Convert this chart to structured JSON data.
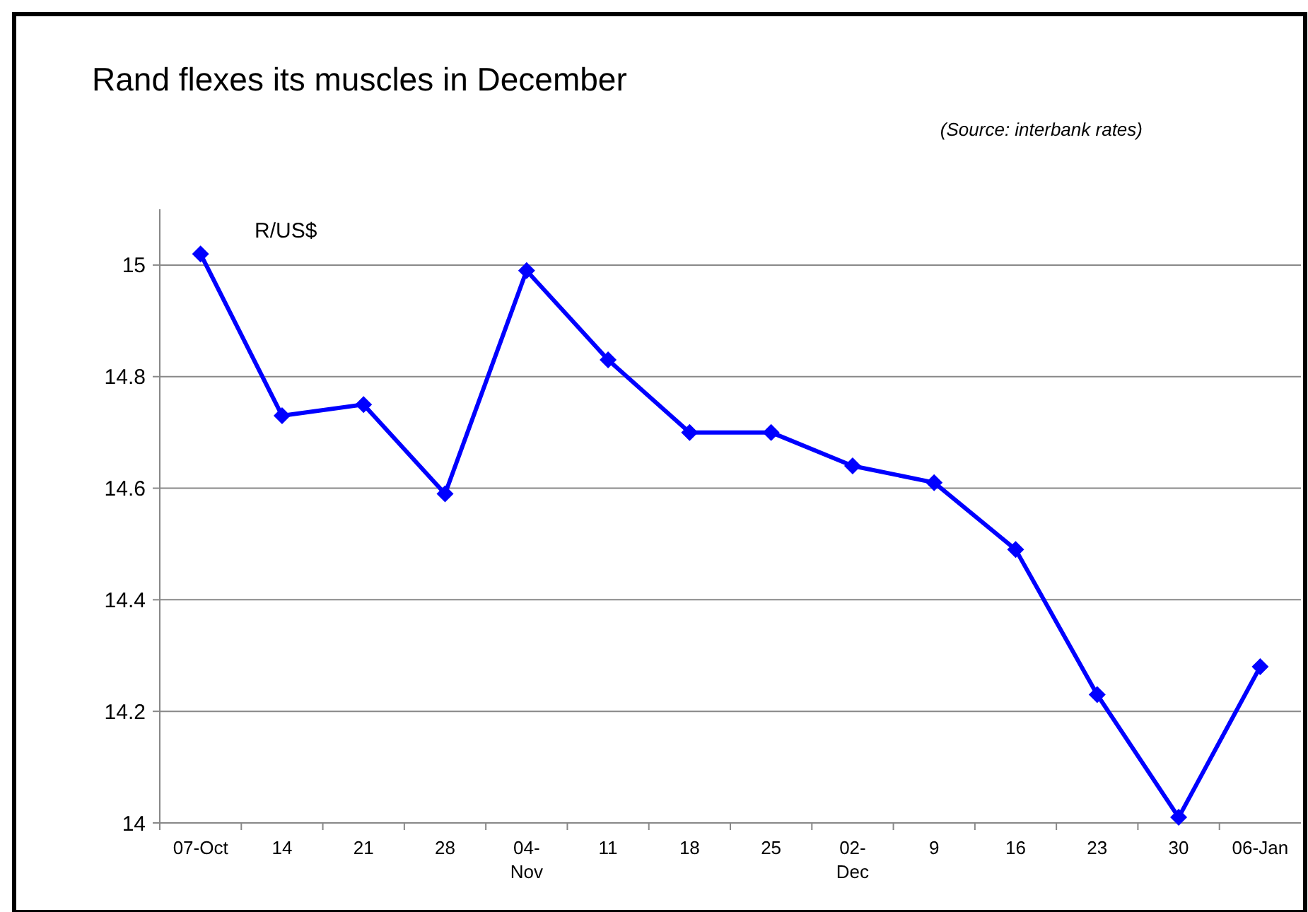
{
  "chart_data": {
    "type": "line",
    "title": "Rand flexes its muscles in December",
    "subtitle": "(Source: interbank rates)",
    "ylabel": "R/US$",
    "categories": [
      "07-Oct",
      "14",
      "21",
      "28",
      "04- Nov",
      "11",
      "18",
      "25",
      "02- Dec",
      "9",
      "16",
      "23",
      "30",
      "06-Jan"
    ],
    "series": [
      {
        "color": "#0000ff",
        "values": [
          15.02,
          14.73,
          14.75,
          14.59,
          14.99,
          14.83,
          14.7,
          14.7,
          14.64,
          14.61,
          14.49,
          14.23,
          14.01,
          14.28
        ]
      }
    ],
    "ylim": [
      14,
      15.1
    ],
    "yticks": [
      14,
      14.2,
      14.4,
      14.6,
      14.8,
      15
    ],
    "grid": "y",
    "marker": "diamond",
    "line_style": "solid"
  }
}
